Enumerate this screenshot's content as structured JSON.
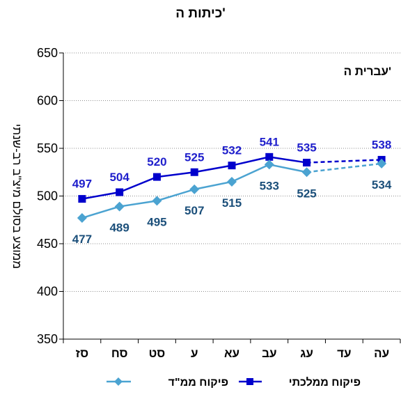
{
  "chart_data": {
    "type": "line",
    "title": "כיתות ה'",
    "annotation": "עברית ה'",
    "ylabel": "ממוצע בסולם מיצ\"ב רב-שנתי",
    "ylim": [
      350,
      650
    ],
    "yticks": [
      350,
      400,
      450,
      500,
      550,
      600,
      650
    ],
    "categories": [
      "סז",
      "סח",
      "סט",
      "ע",
      "עא",
      "עב",
      "עג",
      "עד",
      "עה"
    ],
    "grid": true,
    "legend_position": "bottom",
    "series": [
      {
        "name": "פיקוח ממלכתי",
        "color": "#0000CC",
        "label_color": "#1F1FCC",
        "marker": "square",
        "values": [
          497,
          504,
          520,
          525,
          532,
          541,
          535,
          null,
          538
        ],
        "label_position": "above"
      },
      {
        "name": "פיקוח ממ\"ד",
        "color": "#4BA3D1",
        "label_color": "#1B4F7A",
        "marker": "diamond",
        "values": [
          477,
          489,
          495,
          507,
          515,
          533,
          525,
          null,
          534
        ],
        "label_position": "below"
      }
    ]
  }
}
